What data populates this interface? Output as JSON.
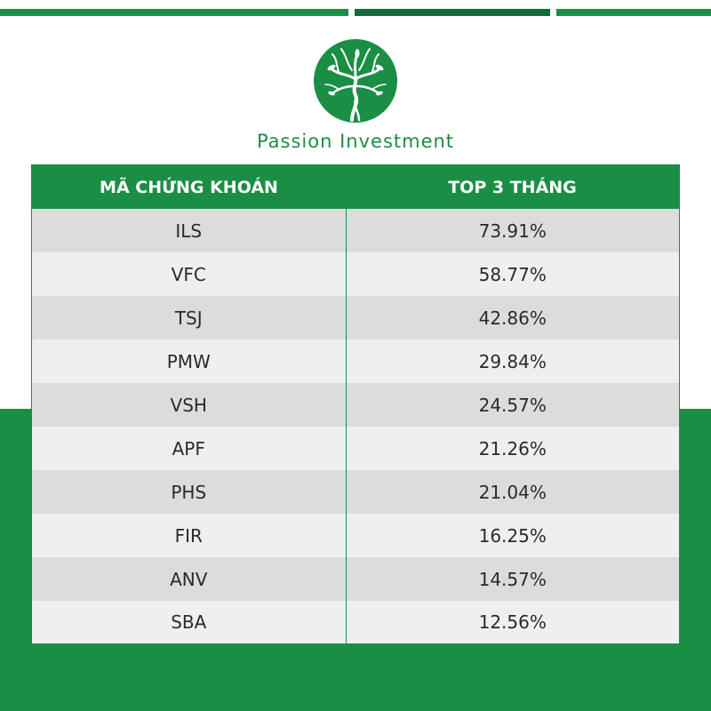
{
  "brand": {
    "name": "Passion Investment",
    "logo_icon": "tree-logo-icon",
    "color": "#1b8e45"
  },
  "table": {
    "headers": [
      "MÃ CHỨNG KHOÁN",
      "TOP 3 THÁNG"
    ],
    "rows": [
      [
        "ILS",
        "73.91%"
      ],
      [
        "VFC",
        "58.77%"
      ],
      [
        "TSJ",
        "42.86%"
      ],
      [
        "PMW",
        "29.84%"
      ],
      [
        "VSH",
        "24.57%"
      ],
      [
        "APF",
        "21.26%"
      ],
      [
        "PHS",
        "21.04%"
      ],
      [
        "FIR",
        "16.25%"
      ],
      [
        "ANV",
        "14.57%"
      ],
      [
        "SBA",
        "12.56%"
      ]
    ]
  },
  "chart_data": {
    "type": "table",
    "columns": [
      "MÃ CHỨNG KHOÁN",
      "TOP 3 THÁNG"
    ],
    "categories": [
      "ILS",
      "VFC",
      "TSJ",
      "PMW",
      "VSH",
      "APF",
      "PHS",
      "FIR",
      "ANV",
      "SBA"
    ],
    "values": [
      73.91,
      58.77,
      42.86,
      29.84,
      24.57,
      21.26,
      21.04,
      16.25,
      14.57,
      12.56
    ]
  }
}
